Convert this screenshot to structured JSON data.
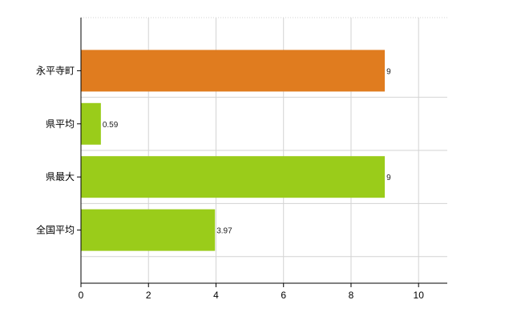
{
  "chart_data": {
    "type": "bar",
    "orientation": "horizontal",
    "categories": [
      "永平寺町",
      "県平均",
      "県最大",
      "全国平均"
    ],
    "values": [
      9,
      0.59,
      9,
      3.97
    ],
    "data_labels": [
      "9",
      "0.59",
      "9",
      "3.97"
    ],
    "bar_colors": [
      "#e07c1f",
      "#9acc1a",
      "#9acc1a",
      "#9acc1a"
    ],
    "xlim": [
      0,
      10.85
    ],
    "x_ticks": [
      0,
      2,
      4,
      6,
      8,
      10
    ],
    "x_tick_labels": [
      "0",
      "2",
      "4",
      "6",
      "8",
      "10"
    ],
    "grid": true,
    "title": "",
    "xlabel": "",
    "ylabel": ""
  }
}
